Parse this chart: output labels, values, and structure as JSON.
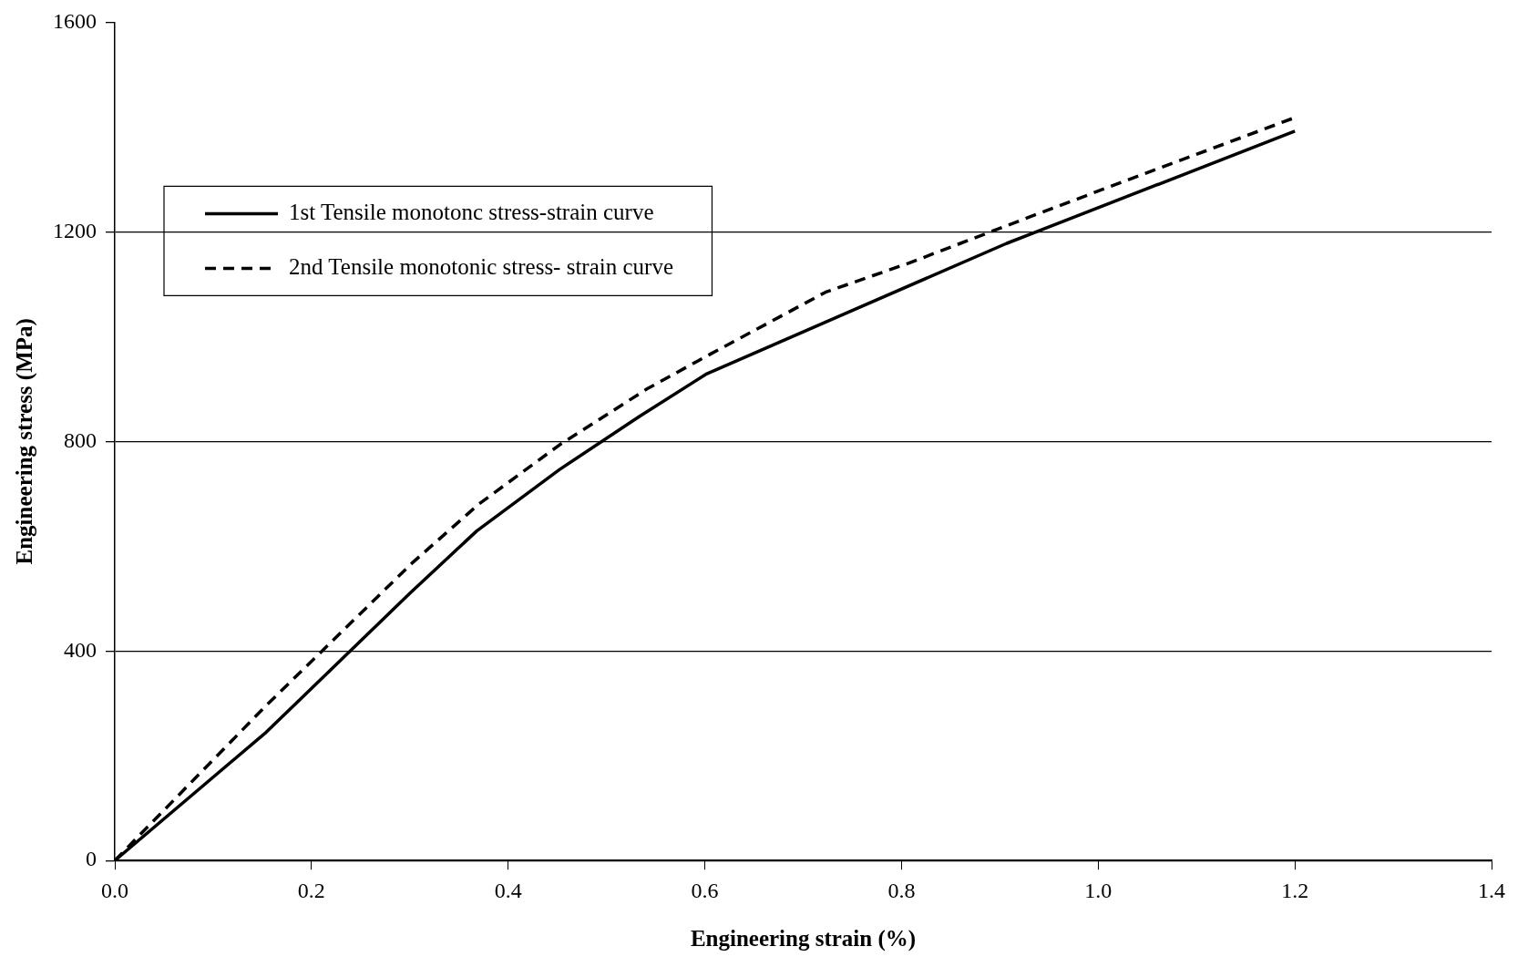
{
  "chart_data": {
    "type": "line",
    "xlabel": "Engineering strain (%)",
    "ylabel": "Engineering stress (MPa)",
    "xlim": [
      0,
      1.4
    ],
    "xticks": [
      {
        "value": 0,
        "label": "0.0"
      },
      0.2,
      0.4,
      0.6,
      0.8,
      {
        "value": 1,
        "label": "1.0"
      },
      1.2,
      1.4
    ],
    "ylim": [
      0,
      1600
    ],
    "yticks": [
      0,
      400,
      800,
      1200,
      1600
    ],
    "grid": "y",
    "legend": "top left",
    "marker": "none",
    "series": [
      {
        "name": "1st Tensile monotonc stress-strain curve",
        "color": "#000000",
        "line_style": "solid",
        "x": [
          0,
          0.154,
          0.3,
          0.368,
          0.452,
          0.533,
          0.601,
          0.75,
          0.907,
          1.2
        ],
        "values": [
          0,
          245,
          510,
          629,
          746,
          847,
          928,
          1050,
          1178,
          1392
        ]
      },
      {
        "name": "2nd Tensile monotonic stress- strain curve",
        "color": "#000000",
        "line_style": "dashed",
        "x": [
          0,
          0.154,
          0.303,
          0.37,
          0.452,
          0.541,
          0.605,
          0.723,
          0.807,
          0.927,
          1.006,
          1.2
        ],
        "values": [
          0,
          296,
          569,
          680,
          793,
          900,
          966,
          1085,
          1140,
          1226,
          1282,
          1418
        ]
      }
    ]
  }
}
